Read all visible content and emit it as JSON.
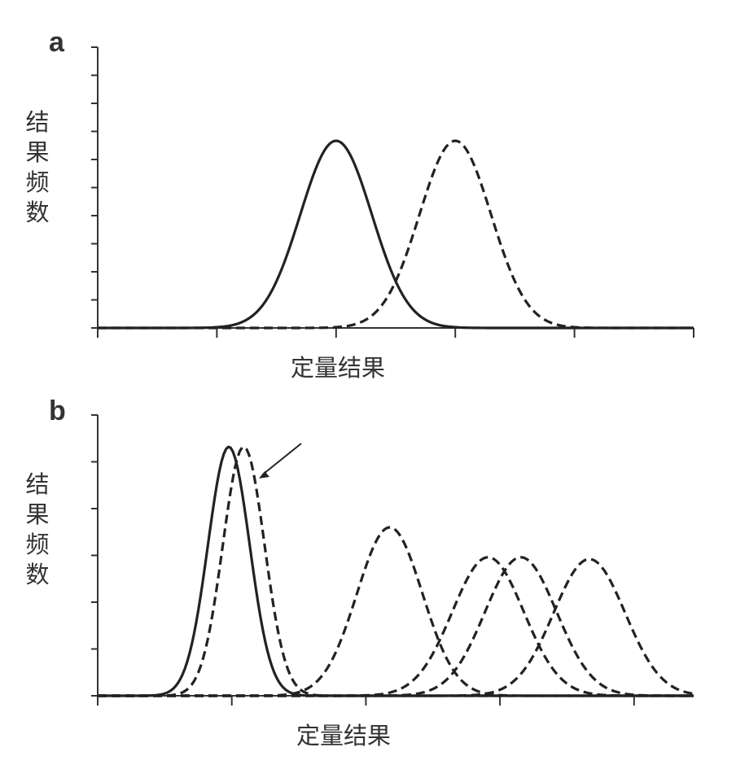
{
  "chart_data": [
    {
      "panel": "a",
      "type": "line",
      "title": "",
      "xlabel": "定量结果",
      "ylabel": "结果频数",
      "xlim": [
        0,
        10
      ],
      "ylim": [
        0,
        1.5
      ],
      "x_ticks": [
        2,
        4,
        6,
        8,
        10
      ],
      "y_tick_count": 10,
      "grid": false,
      "legend": "none",
      "series": [
        {
          "style": "solid",
          "color": "#222222",
          "mean": 4.0,
          "sd": 0.6,
          "peak": 1.0
        },
        {
          "style": "dashed",
          "color": "#222222",
          "mean": 6.0,
          "sd": 0.6,
          "peak": 1.0
        }
      ]
    },
    {
      "panel": "b",
      "type": "line",
      "title": "",
      "xlabel": "定量结果",
      "ylabel": "结果频数",
      "xlim": [
        0,
        10
      ],
      "ylim": [
        0,
        1.5
      ],
      "x_ticks": [
        2.25,
        4.5,
        6.75,
        9
      ],
      "y_tick_count": 6,
      "grid": false,
      "legend": "none",
      "annotation": "arrow pointing to the second narrow dashed peak",
      "series": [
        {
          "style": "solid",
          "color": "#222222",
          "mean": 2.2,
          "sd": 0.35,
          "peak": 1.33
        },
        {
          "style": "dashed",
          "color": "#222222",
          "mean": 2.45,
          "sd": 0.35,
          "peak": 1.33
        },
        {
          "style": "dashed",
          "color": "#222222",
          "mean": 4.9,
          "sd": 0.55,
          "peak": 0.9
        },
        {
          "style": "dashed",
          "color": "#222222",
          "mean": 6.55,
          "sd": 0.6,
          "peak": 0.74
        },
        {
          "style": "dashed",
          "color": "#222222",
          "mean": 7.1,
          "sd": 0.6,
          "peak": 0.74
        },
        {
          "style": "dashed",
          "color": "#222222",
          "mean": 8.25,
          "sd": 0.6,
          "peak": 0.73
        }
      ]
    }
  ]
}
